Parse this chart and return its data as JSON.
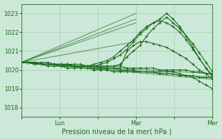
{
  "bg_color": "#cce8d8",
  "grid_color": "#aaccb8",
  "line_color": "#1a6b1a",
  "marker_color": "#1a6b1a",
  "xlabel": "Pression niveau de la mer( hPa )",
  "xlabel_color": "#1a6b1a",
  "tick_color": "#1a6b1a",
  "ylim": [
    1017.5,
    1023.5
  ],
  "yticks": [
    1018,
    1019,
    1020,
    1021,
    1022,
    1023
  ],
  "xtick_labels": [
    "",
    "Lun",
    "",
    "Mar",
    "",
    "Mer"
  ],
  "xtick_positions": [
    0,
    24,
    48,
    72,
    96,
    120
  ],
  "series": [
    [
      1020.4,
      1020.4,
      1020.4,
      1020.3,
      1020.3,
      1020.3,
      1020.3,
      1020.3,
      1020.2,
      1020.2,
      1020.2,
      1020.2,
      1020.1,
      1020.1,
      1020.1,
      1020.0,
      1020.0,
      1020.0,
      1019.9,
      1019.9,
      1019.9,
      1019.8,
      1019.8,
      1019.8,
      1019.7,
      1019.7,
      1019.7,
      1019.6,
      1019.6,
      1019.6
    ],
    [
      1020.4,
      1020.4,
      1020.4,
      1020.4,
      1020.4,
      1020.3,
      1020.3,
      1020.3,
      1020.3,
      1020.3,
      1020.2,
      1020.2,
      1020.2,
      1020.2,
      1020.2,
      1020.2,
      1020.1,
      1020.1,
      1020.1,
      1020.1,
      1020.1,
      1020.0,
      1020.0,
      1020.0,
      1020.0,
      1020.0,
      1019.9,
      1019.9,
      1019.8,
      1019.8
    ],
    [
      1020.4,
      1020.4,
      1020.3,
      1020.3,
      1020.3,
      1020.3,
      1020.2,
      1020.2,
      1020.2,
      1020.2,
      1020.2,
      1020.1,
      1020.1,
      1020.1,
      1020.1,
      1020.1,
      1021.0,
      1021.3,
      1021.5,
      1021.5,
      1021.4,
      1021.3,
      1021.2,
      1021.0,
      1020.8,
      1020.6,
      1020.3,
      1020.0,
      1019.8,
      1019.5
    ],
    [
      1020.4,
      1020.4,
      1020.3,
      1020.3,
      1020.2,
      1020.2,
      1020.2,
      1020.1,
      1020.1,
      1020.1,
      1020.1,
      1020.0,
      1020.0,
      1020.0,
      1019.9,
      1019.9,
      1019.9,
      1019.9,
      1019.9,
      1019.9,
      1019.9,
      1019.9,
      1019.9,
      1019.9,
      1019.8,
      1019.7,
      1019.6,
      1019.4,
      1019.2,
      1019.0
    ],
    [
      1020.4,
      1020.4,
      1020.4,
      1020.3,
      1020.3,
      1020.3,
      1020.3,
      1020.3,
      1020.2,
      1020.2,
      1020.2,
      1020.2,
      1020.2,
      1020.2,
      1020.2,
      1020.3,
      1020.7,
      1021.0,
      1021.3,
      1021.8,
      1022.2,
      1022.5,
      1022.8,
      1022.5,
      1022.2,
      1021.8,
      1021.4,
      1020.9,
      1020.4,
      1019.9
    ],
    [
      1020.4,
      1020.4,
      1020.3,
      1020.3,
      1020.3,
      1020.3,
      1020.3,
      1020.3,
      1020.2,
      1020.2,
      1020.2,
      1020.2,
      1020.3,
      1020.4,
      1020.6,
      1020.8,
      1021.1,
      1021.5,
      1021.9,
      1022.2,
      1022.5,
      1022.7,
      1023.0,
      1022.7,
      1022.3,
      1021.8,
      1021.2,
      1020.6,
      1020.1,
      1019.6
    ],
    [
      1020.4,
      1020.4,
      1020.3,
      1020.3,
      1020.3,
      1020.3,
      1020.3,
      1020.2,
      1020.2,
      1020.2,
      1020.2,
      1020.3,
      1020.4,
      1020.5,
      1020.7,
      1021.0,
      1021.3,
      1021.6,
      1022.0,
      1022.3,
      1022.5,
      1022.6,
      1022.5,
      1022.3,
      1022.0,
      1021.6,
      1021.1,
      1020.6,
      1020.1,
      1019.7
    ]
  ],
  "straight_lines": [
    {
      "x0": 0,
      "y0": 1020.4,
      "x1": 120,
      "y1": 1019.6
    },
    {
      "x0": 0,
      "y0": 1020.4,
      "x1": 120,
      "y1": 1019.8
    },
    {
      "x0": 0,
      "y0": 1020.4,
      "x1": 120,
      "y1": 1019.5
    },
    {
      "x0": 0,
      "y0": 1020.4,
      "x1": 72,
      "y1": 1021.5
    },
    {
      "x0": 0,
      "y0": 1020.4,
      "x1": 72,
      "y1": 1023.0
    },
    {
      "x0": 0,
      "y0": 1020.4,
      "x1": 72,
      "y1": 1022.7
    },
    {
      "x0": 0,
      "y0": 1020.4,
      "x1": 72,
      "y1": 1022.5
    }
  ],
  "n_points": 30,
  "time_span": 120
}
